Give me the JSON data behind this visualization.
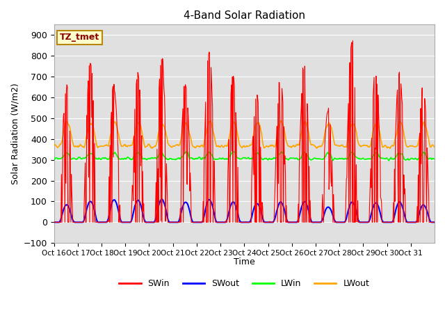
{
  "title": "4-Band Solar Radiation",
  "ylabel": "Solar Radiation (W/m2)",
  "xlabel": "Time",
  "annotation": "TZ_tmet",
  "ylim": [
    -100,
    950
  ],
  "plot_bg_color": "#e0e0e0",
  "n_days": 16,
  "tick_labels": [
    "Oct 16",
    "Oct 17",
    "Oct 18",
    "Oct 19",
    "Oct 20",
    "Oct 21",
    "Oct 22",
    "Oct 23",
    "Oct 24",
    "Oct 25",
    "Oct 26",
    "Oct 27",
    "Oct 28",
    "Oct 29",
    "Oct 30",
    "Oct 31"
  ],
  "legend_entries": [
    "SWin",
    "SWout",
    "LWin",
    "LWout"
  ],
  "legend_colors": [
    "red",
    "blue",
    "lime",
    "orange"
  ],
  "day_peak_swin": [
    630,
    770,
    635,
    715,
    780,
    665,
    830,
    700,
    615,
    690,
    755,
    530,
    860,
    710,
    720,
    635
  ],
  "day_peak_swout": [
    85,
    105,
    110,
    108,
    112,
    100,
    110,
    100,
    90,
    100,
    100,
    75,
    100,
    95,
    100,
    85
  ],
  "LWin_base": 305,
  "LWout_base": 365,
  "LWout_day_peak": 480,
  "seed": 17
}
